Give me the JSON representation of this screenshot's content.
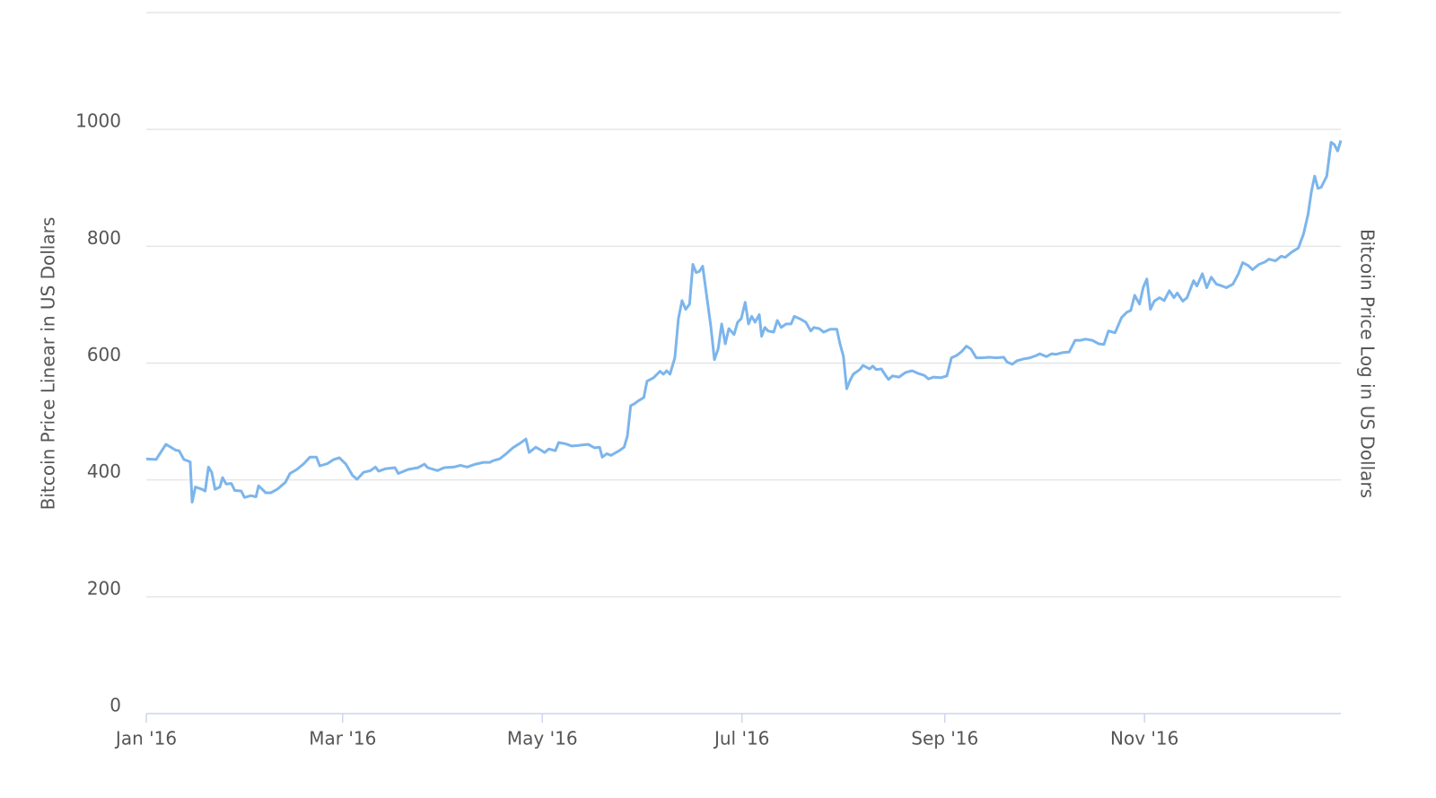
{
  "chart_data": {
    "type": "line",
    "y_label": "Bitcoin Price Linear in US Dollars",
    "y2_label": "Bitcoin Price Log in US Dollars",
    "color": "#7cb5ec",
    "grid": true,
    "xlim": [
      0,
      365
    ],
    "xticks": [
      {
        "value": 0,
        "label": "Jan '16"
      },
      {
        "value": 60,
        "label": "Mar '16"
      },
      {
        "value": 121,
        "label": "May '16"
      },
      {
        "value": 182,
        "label": "Jul '16"
      },
      {
        "value": 244,
        "label": "Sep '16"
      },
      {
        "value": 305,
        "label": "Nov '16"
      }
    ],
    "ylim": [
      0,
      1200
    ],
    "yticks": [
      0,
      200,
      400,
      600,
      800,
      1000
    ],
    "x": [
      0,
      3,
      6,
      9,
      10,
      11.5,
      13.4,
      14,
      15,
      17,
      18,
      19,
      20,
      21,
      22.5,
      23.3,
      24.4,
      26,
      27,
      29,
      30,
      32,
      33.5,
      34.3,
      35.4,
      36.5,
      38,
      40,
      42.5,
      43.9,
      46,
      48,
      50,
      52,
      53,
      55.4,
      57.3,
      59,
      61,
      63,
      64.4,
      66.4,
      68.5,
      70,
      71,
      73,
      76,
      77,
      80,
      83,
      85,
      86,
      89,
      91,
      94,
      96,
      98,
      100.6,
      103,
      105,
      106,
      108,
      110,
      112,
      114,
      116,
      117,
      119,
      120.6,
      121.7,
      123,
      125,
      126,
      128,
      130,
      132,
      135,
      137,
      138.5,
      139.3,
      140.7,
      142,
      144.5,
      146,
      147,
      148,
      149,
      150.5,
      152,
      153,
      155,
      157,
      158,
      159,
      160,
      161.5,
      162.6,
      163.7,
      164.8,
      166,
      167,
      168,
      169,
      170,
      171,
      172.5,
      173.6,
      174.7,
      175.8,
      176.9,
      178,
      179.6,
      180.7,
      181.8,
      183,
      184,
      185,
      186,
      187.3,
      188,
      189,
      190,
      191.7,
      192.8,
      194,
      195.5,
      197,
      198,
      200,
      201.5,
      203,
      204,
      205.6,
      207,
      209,
      211,
      212,
      213,
      214,
      215,
      216,
      218,
      219,
      221,
      222,
      223,
      224.6,
      226,
      226.8,
      228,
      230,
      232,
      234,
      236,
      237.7,
      239,
      240.5,
      242.7,
      244.6,
      246,
      247.6,
      249,
      250.6,
      252,
      253.6,
      255.5,
      257.5,
      259.7,
      262,
      263,
      264.6,
      266,
      268,
      270,
      272,
      273,
      275,
      276.7,
      278,
      280,
      282,
      283.8,
      285.4,
      287,
      289,
      291,
      292.6,
      294,
      296,
      298,
      299.6,
      300.8,
      302,
      303.5,
      304.6,
      305.7,
      306.8,
      308,
      309.6,
      311,
      312.6,
      314,
      315,
      316.7,
      318,
      320,
      321,
      322.7,
      324,
      325.4,
      327,
      328.7,
      330,
      332,
      333.7,
      335,
      336.7,
      338,
      340,
      341.8,
      343,
      345,
      346.8,
      348,
      350,
      352,
      353.6,
      355,
      356,
      357,
      358,
      359,
      360.7,
      362,
      363,
      364,
      365
    ],
    "values": [
      436,
      435,
      461,
      451,
      450,
      435,
      431,
      362,
      388,
      384,
      381,
      422,
      413,
      384,
      388,
      404,
      393,
      394,
      382,
      381,
      370,
      373,
      371,
      390,
      384,
      378,
      378,
      384,
      396,
      411,
      418,
      427,
      439,
      439,
      424,
      428,
      435,
      438,
      427,
      408,
      401,
      413,
      416,
      422,
      415,
      419,
      421,
      411,
      418,
      421,
      427,
      421,
      416,
      421,
      422,
      425,
      422,
      427,
      430,
      430,
      433,
      436,
      445,
      455,
      462,
      470,
      447,
      456,
      451,
      447,
      453,
      450,
      464,
      462,
      458,
      459,
      461,
      455,
      456,
      439,
      445,
      442,
      450,
      456,
      475,
      527,
      530,
      536,
      541,
      569,
      575,
      586,
      581,
      587,
      581,
      609,
      676,
      707,
      692,
      701,
      769,
      755,
      757,
      766,
      724,
      663,
      606,
      624,
      667,
      633,
      659,
      649,
      670,
      676,
      704,
      667,
      680,
      670,
      683,
      646,
      661,
      655,
      653,
      673,
      661,
      667,
      667,
      680,
      675,
      670,
      655,
      661,
      659,
      653,
      658,
      658,
      632,
      612,
      556,
      570,
      581,
      589,
      596,
      590,
      595,
      589,
      590,
      578,
      572,
      578,
      576,
      584,
      587,
      582,
      579,
      573,
      576,
      575,
      578,
      609,
      613,
      619,
      629,
      624,
      609,
      609,
      610,
      609,
      610,
      602,
      598,
      604,
      607,
      609,
      613,
      616,
      611,
      616,
      615,
      618,
      619,
      639,
      639,
      641,
      639,
      633,
      632,
      655,
      652,
      678,
      687,
      690,
      716,
      701,
      729,
      744,
      692,
      706,
      712,
      707,
      724,
      712,
      720,
      706,
      712,
      741,
      732,
      753,
      729,
      747,
      735,
      732,
      729,
      735,
      753,
      772,
      767,
      760,
      769,
      773,
      778,
      775,
      783,
      781,
      790,
      797,
      821,
      855,
      894,
      920,
      899,
      901,
      920,
      978,
      974,
      963,
      981
    ]
  }
}
